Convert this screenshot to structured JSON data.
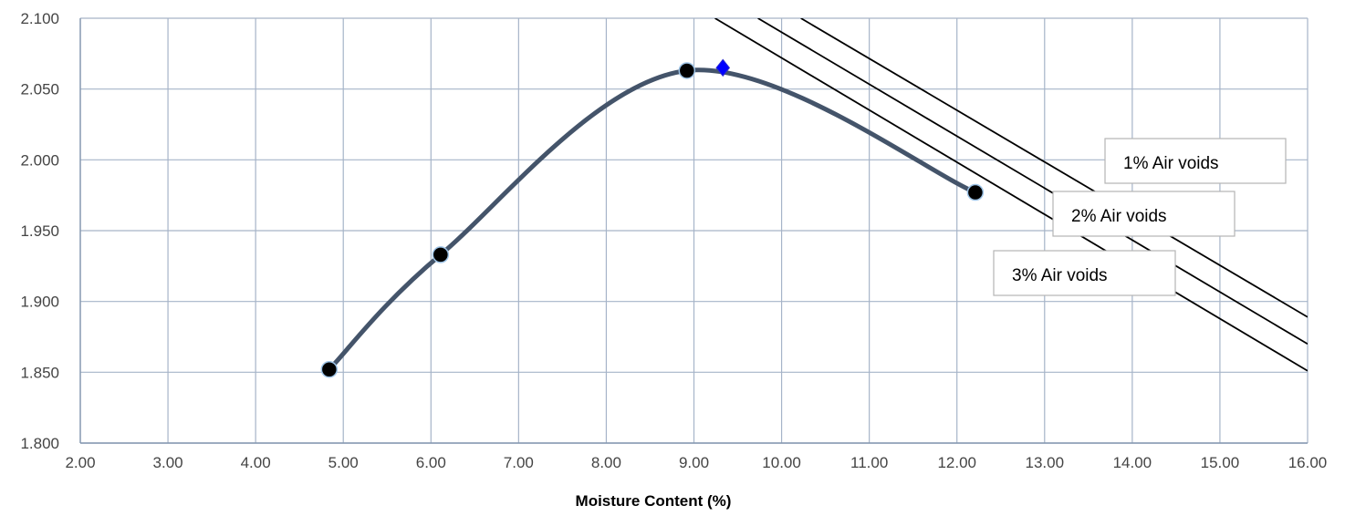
{
  "chart_data": {
    "type": "scatter",
    "title": "",
    "xlabel": "Moisture Content (%)",
    "ylabel": "",
    "xlim": [
      2.0,
      16.0
    ],
    "ylim": [
      1.8,
      2.1
    ],
    "x_ticks": [
      "2.00",
      "3.00",
      "4.00",
      "5.00",
      "6.00",
      "7.00",
      "8.00",
      "9.00",
      "10.00",
      "11.00",
      "12.00",
      "13.00",
      "14.00",
      "15.00",
      "16.00"
    ],
    "y_ticks": [
      "1.800",
      "1.850",
      "1.900",
      "1.950",
      "2.000",
      "2.050",
      "2.100"
    ],
    "grid": true,
    "series": [
      {
        "type": "line-with-markers",
        "smooth": true,
        "color": "#44546A",
        "marker": "circle",
        "marker_color": "#000000",
        "points": [
          {
            "x": 4.84,
            "y": 1.852
          },
          {
            "x": 6.11,
            "y": 1.933
          },
          {
            "x": 8.92,
            "y": 2.063
          },
          {
            "x": 12.21,
            "y": 1.977
          }
        ]
      },
      {
        "type": "marker",
        "marker": "diamond",
        "color": "#0000FF",
        "points": [
          {
            "x": 9.33,
            "y": 2.065
          }
        ]
      },
      {
        "name": "1% Air voids",
        "type": "line",
        "color": "#000000",
        "points": [
          {
            "x": 10.22,
            "y": 2.1
          },
          {
            "x": 16.0,
            "y": 1.889
          }
        ]
      },
      {
        "name": "2% Air voids",
        "type": "line",
        "color": "#000000",
        "points": [
          {
            "x": 9.73,
            "y": 2.1
          },
          {
            "x": 16.0,
            "y": 1.87
          }
        ]
      },
      {
        "name": "3% Air voids",
        "type": "line",
        "color": "#000000",
        "points": [
          {
            "x": 9.24,
            "y": 2.1
          },
          {
            "x": 16.0,
            "y": 1.851
          }
        ]
      }
    ],
    "labels": [
      "1% Air voids",
      "2% Air voids",
      "3% Air voids"
    ],
    "colors": {
      "grid": "#A6B4C8",
      "axis": "#8497B0",
      "curve": "#44546A",
      "point": "#000000",
      "point_edge": "#9DC3E6",
      "optimum": "#0000FF"
    }
  }
}
